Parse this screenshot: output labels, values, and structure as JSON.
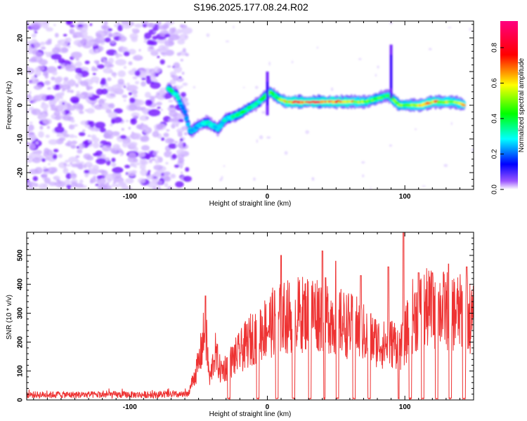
{
  "figure": {
    "title": "S196.2025.177.08.24.R02"
  },
  "chart_data": [
    {
      "type": "heatmap",
      "title": "S196.2025.177.08.24.R02",
      "xlabel": "Height of straight line (km)",
      "ylabel": "Frequency (Hz)",
      "xlim": [
        -175,
        150
      ],
      "ylim": [
        -25,
        25
      ],
      "x_ticks": [
        -100,
        0,
        100
      ],
      "y_ticks": [
        -20,
        -10,
        0,
        10,
        20
      ],
      "x_tick_labels": [
        "-100",
        "0",
        "100"
      ],
      "y_tick_labels": [
        "-20",
        "-10",
        "0",
        "10",
        "20"
      ],
      "grid": false,
      "colorbar": {
        "label": "Normalized spectral amplitude",
        "range": [
          0,
          0.95
        ],
        "ticks": [
          0.0,
          0.2,
          0.4,
          0.6,
          0.8
        ],
        "tick_labels": [
          "0.0",
          "0.2",
          "0.4",
          "0.6",
          "0.8"
        ],
        "colors": [
          "#ffffff",
          "#6600ff",
          "#0000ff",
          "#00ffff",
          "#00ff00",
          "#ffff00",
          "#ff0000",
          "#ff0080"
        ]
      },
      "noise_region": {
        "x": [
          -175,
          -58
        ],
        "level": 0.1
      },
      "ridge": [
        {
          "x": -72,
          "y": 5,
          "a": 0.35
        },
        {
          "x": -66,
          "y": 3,
          "a": 0.35
        },
        {
          "x": -60,
          "y": -2,
          "a": 0.2
        },
        {
          "x": -56,
          "y": -8,
          "a": 0.3
        },
        {
          "x": -50,
          "y": -6,
          "a": 0.25
        },
        {
          "x": -44,
          "y": -5,
          "a": 0.35
        },
        {
          "x": -36,
          "y": -7,
          "a": 0.3
        },
        {
          "x": -30,
          "y": -4,
          "a": 0.3
        },
        {
          "x": -22,
          "y": -3,
          "a": 0.4
        },
        {
          "x": -14,
          "y": -1,
          "a": 0.4
        },
        {
          "x": -6,
          "y": 1,
          "a": 0.35
        },
        {
          "x": 2,
          "y": 4,
          "a": 0.45
        },
        {
          "x": 8,
          "y": 2,
          "a": 0.45
        },
        {
          "x": 14,
          "y": 1,
          "a": 0.6
        },
        {
          "x": 22,
          "y": 1,
          "a": 0.8
        },
        {
          "x": 32,
          "y": 1,
          "a": 0.7
        },
        {
          "x": 40,
          "y": 1,
          "a": 0.85
        },
        {
          "x": 48,
          "y": 1,
          "a": 0.65
        },
        {
          "x": 56,
          "y": 1,
          "a": 0.7
        },
        {
          "x": 64,
          "y": 1,
          "a": 0.6
        },
        {
          "x": 72,
          "y": 1,
          "a": 0.5
        },
        {
          "x": 80,
          "y": 2,
          "a": 0.45
        },
        {
          "x": 88,
          "y": 3,
          "a": 0.45
        },
        {
          "x": 96,
          "y": 0,
          "a": 0.5
        },
        {
          "x": 104,
          "y": 0,
          "a": 0.55
        },
        {
          "x": 112,
          "y": 0,
          "a": 0.6
        },
        {
          "x": 120,
          "y": 1,
          "a": 0.65
        },
        {
          "x": 128,
          "y": 1,
          "a": 0.6
        },
        {
          "x": 136,
          "y": 1,
          "a": 0.55
        },
        {
          "x": 144,
          "y": 0,
          "a": 0.6
        }
      ],
      "spikes": [
        {
          "x": 0,
          "y_from": -3,
          "y_to": 10
        },
        {
          "x": 90,
          "y_from": 2,
          "y_to": 18
        }
      ]
    },
    {
      "type": "line",
      "xlabel": "Height of straight line (km)",
      "ylabel": "SNR (10 * v/v)",
      "xlim": [
        -175,
        150
      ],
      "ylim": [
        0,
        580
      ],
      "x_ticks": [
        -100,
        0,
        100
      ],
      "y_ticks": [
        0,
        100,
        200,
        300,
        400,
        500
      ],
      "x_tick_labels": [
        "-100",
        "0",
        "100"
      ],
      "y_tick_labels": [
        "0",
        "100",
        "200",
        "300",
        "400",
        "500"
      ],
      "grid": false,
      "color": "#ee3333",
      "noise_floor": {
        "x": [
          -175,
          -58
        ],
        "mean": 18,
        "spread": 12
      },
      "envelope": [
        [
          -58,
          20
        ],
        [
          -50,
          150
        ],
        [
          -45,
          300
        ],
        [
          -42,
          80
        ],
        [
          -38,
          200
        ],
        [
          -34,
          120
        ],
        [
          -28,
          150
        ],
        [
          -20,
          200
        ],
        [
          -14,
          240
        ],
        [
          -8,
          280
        ],
        [
          -2,
          300
        ],
        [
          5,
          330
        ],
        [
          15,
          350
        ],
        [
          25,
          360
        ],
        [
          35,
          370
        ],
        [
          45,
          350
        ],
        [
          55,
          320
        ],
        [
          65,
          300
        ],
        [
          75,
          260
        ],
        [
          85,
          230
        ],
        [
          92,
          240
        ],
        [
          98,
          220
        ],
        [
          105,
          350
        ],
        [
          115,
          380
        ],
        [
          125,
          380
        ],
        [
          135,
          370
        ],
        [
          145,
          360
        ],
        [
          150,
          330
        ]
      ],
      "peak_points": [
        [
          -45,
          360
        ],
        [
          10,
          500
        ],
        [
          40,
          515
        ],
        [
          50,
          480
        ],
        [
          68,
          430
        ],
        [
          88,
          460
        ],
        [
          99,
          580
        ],
        [
          110,
          440
        ],
        [
          120,
          440
        ],
        [
          132,
          470
        ],
        [
          145,
          460
        ]
      ],
      "dropouts": [
        [
          -29,
          -27
        ],
        [
          -8,
          -6
        ],
        [
          6,
          8
        ],
        [
          18,
          20
        ],
        [
          30,
          32
        ],
        [
          41,
          42
        ],
        [
          50,
          52
        ],
        [
          62,
          64
        ],
        [
          73,
          75
        ],
        [
          95,
          96
        ],
        [
          103,
          105
        ],
        [
          112,
          114
        ],
        [
          122,
          124
        ],
        [
          132,
          134
        ],
        [
          142,
          144
        ]
      ]
    }
  ]
}
